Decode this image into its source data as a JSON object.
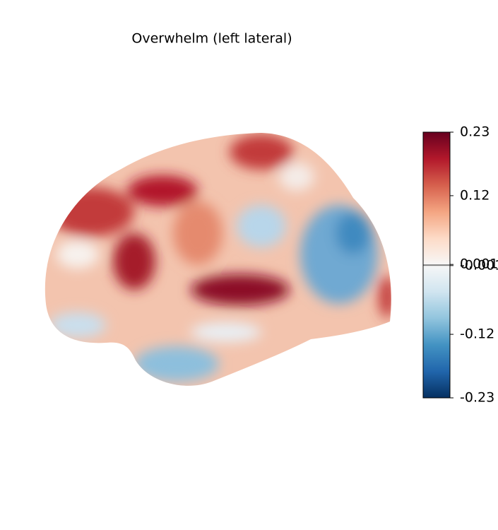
{
  "chart_data": {
    "type": "surface",
    "title": "Overwhelm (left lateral)",
    "colorbar": {
      "ylim": [
        -0.23,
        0.23
      ],
      "yticks": [
        0.23,
        0.12,
        0.001,
        -0.001,
        -0.12,
        -0.23
      ],
      "colors": [
        "#053061",
        "#2166ac",
        "#4393c3",
        "#92c5de",
        "#d1e5f0",
        "#f7f7f7",
        "#fddbc7",
        "#f4a582",
        "#d6604d",
        "#b2182b",
        "#67001f"
      ]
    }
  }
}
